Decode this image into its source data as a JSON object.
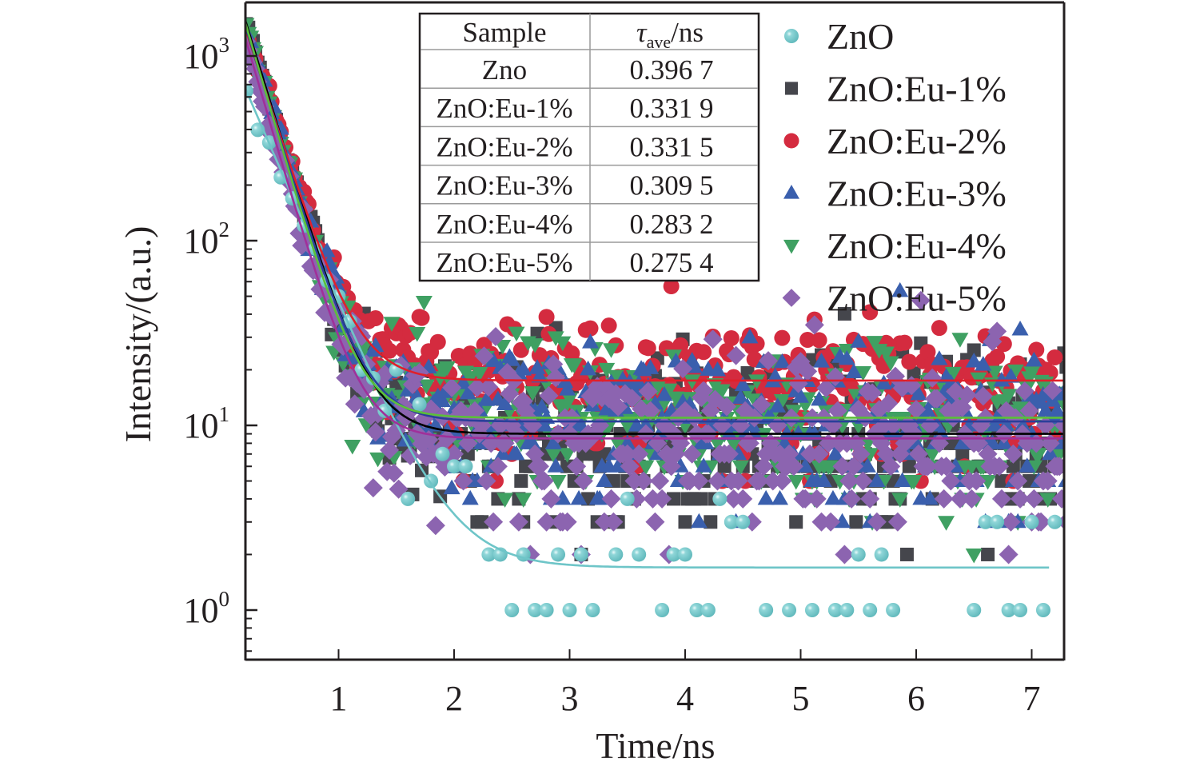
{
  "chart_data": {
    "type": "scatter",
    "title": "",
    "xlabel": "Time/ns",
    "ylabel": "Intensity/(a.u.)",
    "xlim": [
      0.19,
      7.27
    ],
    "ylim": [
      0.55,
      1900
    ],
    "yscale": "log",
    "x_ticks": [
      1,
      2,
      3,
      4,
      5,
      6,
      7
    ],
    "x_tick_labels": [
      "1",
      "2",
      "3",
      "4",
      "5",
      "6",
      "7"
    ],
    "y_ticks": [
      1,
      10,
      100,
      1000
    ],
    "y_tick_labels": [
      {
        "base": "10",
        "exp": "0"
      },
      {
        "base": "10",
        "exp": "1"
      },
      {
        "base": "10",
        "exp": "2"
      },
      {
        "base": "10",
        "exp": "3"
      }
    ],
    "grid": false,
    "legend_position": "top-right",
    "series": [
      {
        "name": "ZnO",
        "marker": "sphere",
        "color": "#6ec5c8",
        "peak": 650,
        "decay_ns": 0.3,
        "baseline": 1.7,
        "fit_color": "#6ec5c8",
        "data_description": "integer photon counts: decays from ~650 at 0.2 ns to ~1-6 counts after 2.5 ns"
      },
      {
        "name": "ZnO:Eu-1%",
        "marker": "square",
        "color": "#45464c",
        "peak": 1500,
        "decay_ns": 0.21,
        "baseline": 9.0,
        "fit_color": "#000000",
        "data_description": "decays from ~1500 to baseline ~9 (scatter 2-20)"
      },
      {
        "name": "ZnO:Eu-2%",
        "marker": "circle",
        "color": "#d42b3f",
        "peak": 1350,
        "decay_ns": 0.22,
        "baseline": 17.5,
        "fit_color": "#e0202a",
        "data_description": "decays from ~1350 to baseline ~17 (scatter 10-35)"
      },
      {
        "name": "ZnO:Eu-3%",
        "marker": "triangle-up",
        "color": "#3a5fad",
        "peak": 1400,
        "decay_ns": 0.21,
        "baseline": 10.5,
        "fit_color": "#2a3f9a",
        "data_description": "decays from ~1400 to baseline ~10.5 (scatter 1-30)"
      },
      {
        "name": "ZnO:Eu-4%",
        "marker": "triangle-down",
        "color": "#3fa062",
        "peak": 1450,
        "decay_ns": 0.2,
        "baseline": 11.0,
        "fit_color": "#5bbf3a",
        "data_description": "decays from ~1450 to baseline ~11 (scatter 3-30)"
      },
      {
        "name": "ZnO:Eu-5%",
        "marker": "diamond",
        "color": "#8c64b0",
        "peak": 1200,
        "decay_ns": 0.2,
        "baseline": 8.5,
        "fit_color": "#a0309a",
        "data_description": "decays from ~1200 to baseline ~8.5 (scatter 2-20)"
      }
    ],
    "inset_table": {
      "headers": [
        "Sample",
        "τ",
        "ave",
        "/ns"
      ],
      "rows": [
        [
          "Zno",
          "0.396 7"
        ],
        [
          "ZnO:Eu-1%",
          "0.331 9"
        ],
        [
          "ZnO:Eu-2%",
          "0.331 5"
        ],
        [
          "ZnO:Eu-3%",
          "0.309 5"
        ],
        [
          "ZnO:Eu-4%",
          "0.283 2"
        ],
        [
          "ZnO:Eu-5%",
          "0.275 4"
        ]
      ]
    }
  }
}
